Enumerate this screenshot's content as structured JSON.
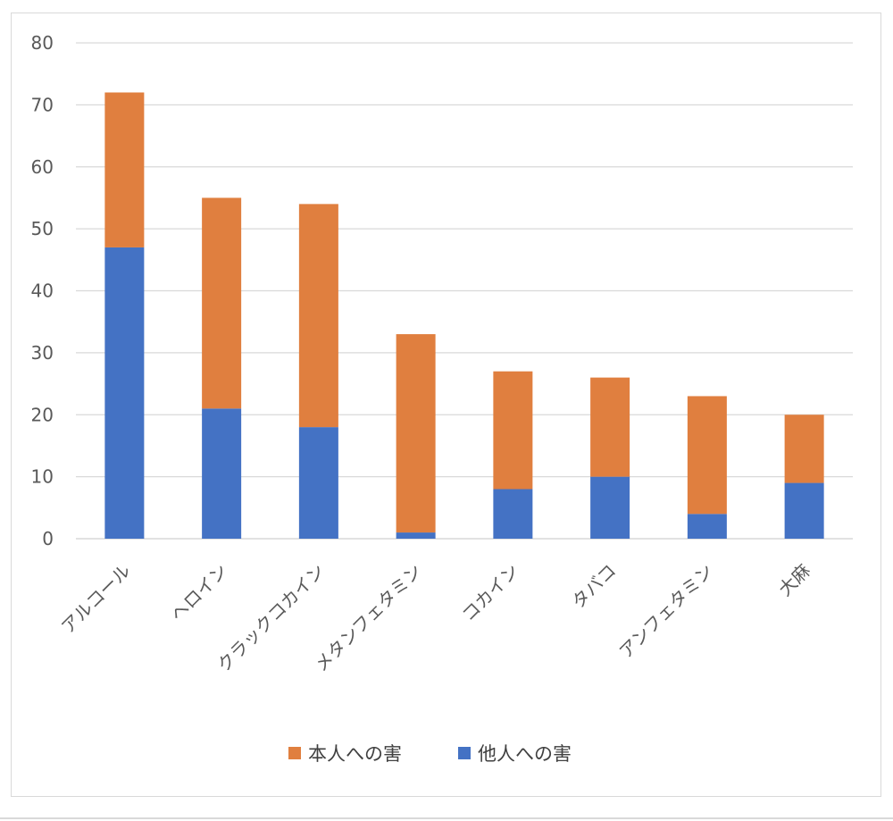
{
  "chart_data": {
    "type": "bar",
    "stacked": true,
    "categories": [
      "アルコール",
      "ヘロイン",
      "クラックコカイン",
      "メタンフェタミン",
      "コカイン",
      "タバコ",
      "アンフェタミン",
      "大麻"
    ],
    "series": [
      {
        "name": "他人への害",
        "color": "#4472C4",
        "values": [
          47,
          21,
          18,
          1,
          8,
          10,
          4,
          9
        ]
      },
      {
        "name": "本人への害",
        "color": "#E07F3F",
        "values": [
          25,
          34,
          36,
          32,
          19,
          16,
          19,
          11
        ]
      }
    ],
    "legend_order": [
      1,
      0
    ],
    "yticks": [
      "0",
      "10",
      "20",
      "30",
      "40",
      "50",
      "60",
      "70",
      "80"
    ],
    "ylim": [
      0,
      80
    ],
    "grid": true,
    "legend_position": "bottom"
  }
}
